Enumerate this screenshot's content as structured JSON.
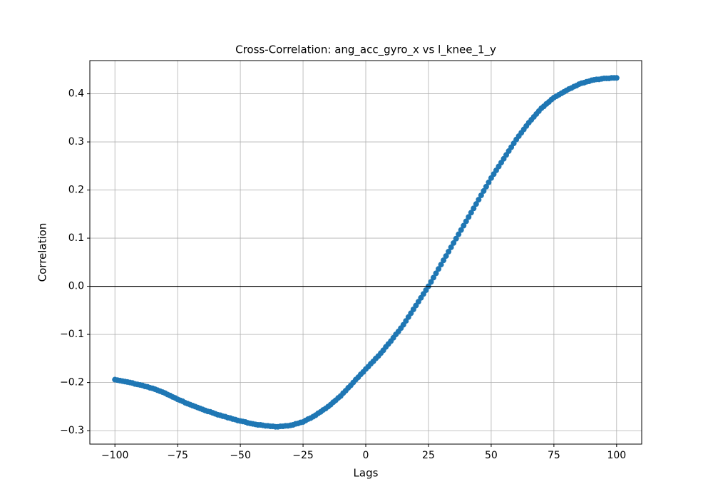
{
  "chart_data": {
    "type": "line",
    "title": "Cross-Correlation: ang_acc_gyro_x vs l_knee_1_y",
    "x_label": "Lags",
    "y_label": "Correlation",
    "x": [
      -100,
      -99,
      -98,
      -97,
      -96,
      -95,
      -94,
      -93,
      -92,
      -91,
      -90,
      -89,
      -88,
      -87,
      -86,
      -85,
      -84,
      -83,
      -82,
      -81,
      -80,
      -79,
      -78,
      -77,
      -76,
      -75,
      -74,
      -73,
      -72,
      -71,
      -70,
      -69,
      -68,
      -67,
      -66,
      -65,
      -64,
      -63,
      -62,
      -61,
      -60,
      -59,
      -58,
      -57,
      -56,
      -55,
      -54,
      -53,
      -52,
      -51,
      -50,
      -49,
      -48,
      -47,
      -46,
      -45,
      -44,
      -43,
      -42,
      -41,
      -40,
      -39,
      -38,
      -37,
      -36,
      -35,
      -34,
      -33,
      -32,
      -31,
      -30,
      -29,
      -28,
      -27,
      -26,
      -25,
      -24,
      -23,
      -22,
      -21,
      -20,
      -19,
      -18,
      -17,
      -16,
      -15,
      -14,
      -13,
      -12,
      -11,
      -10,
      -9,
      -8,
      -7,
      -6,
      -5,
      -4,
      -3,
      -2,
      -1,
      0,
      1,
      2,
      3,
      4,
      5,
      6,
      7,
      8,
      9,
      10,
      11,
      12,
      13,
      14,
      15,
      16,
      17,
      18,
      19,
      20,
      21,
      22,
      23,
      24,
      25,
      26,
      27,
      28,
      29,
      30,
      31,
      32,
      33,
      34,
      35,
      36,
      37,
      38,
      39,
      40,
      41,
      42,
      43,
      44,
      45,
      46,
      47,
      48,
      49,
      50,
      51,
      52,
      53,
      54,
      55,
      56,
      57,
      58,
      59,
      60,
      61,
      62,
      63,
      64,
      65,
      66,
      67,
      68,
      69,
      70,
      71,
      72,
      73,
      74,
      75,
      76,
      77,
      78,
      79,
      80,
      81,
      82,
      83,
      84,
      85,
      86,
      87,
      88,
      89,
      90,
      91,
      92,
      93,
      94,
      95,
      96,
      97,
      98,
      99,
      100
    ],
    "series": [
      {
        "color": "#1f77b4",
        "values": [
          -0.194,
          -0.195,
          -0.196,
          -0.197,
          -0.198,
          -0.199,
          -0.2,
          -0.201,
          -0.203,
          -0.204,
          -0.205,
          -0.206,
          -0.208,
          -0.209,
          -0.211,
          -0.212,
          -0.214,
          -0.216,
          -0.218,
          -0.22,
          -0.222,
          -0.225,
          -0.227,
          -0.23,
          -0.232,
          -0.235,
          -0.237,
          -0.239,
          -0.242,
          -0.244,
          -0.246,
          -0.248,
          -0.25,
          -0.252,
          -0.254,
          -0.256,
          -0.258,
          -0.26,
          -0.261,
          -0.263,
          -0.265,
          -0.267,
          -0.268,
          -0.27,
          -0.271,
          -0.273,
          -0.274,
          -0.276,
          -0.277,
          -0.279,
          -0.28,
          -0.281,
          -0.282,
          -0.284,
          -0.285,
          -0.286,
          -0.287,
          -0.288,
          -0.288,
          -0.289,
          -0.29,
          -0.29,
          -0.291,
          -0.291,
          -0.292,
          -0.292,
          -0.291,
          -0.291,
          -0.29,
          -0.29,
          -0.289,
          -0.288,
          -0.286,
          -0.285,
          -0.283,
          -0.282,
          -0.279,
          -0.276,
          -0.274,
          -0.271,
          -0.268,
          -0.264,
          -0.261,
          -0.257,
          -0.254,
          -0.25,
          -0.246,
          -0.241,
          -0.237,
          -0.232,
          -0.228,
          -0.222,
          -0.217,
          -0.211,
          -0.206,
          -0.2,
          -0.194,
          -0.189,
          -0.183,
          -0.178,
          -0.172,
          -0.167,
          -0.161,
          -0.156,
          -0.15,
          -0.145,
          -0.139,
          -0.133,
          -0.126,
          -0.12,
          -0.114,
          -0.107,
          -0.1,
          -0.094,
          -0.087,
          -0.08,
          -0.072,
          -0.064,
          -0.056,
          -0.048,
          -0.04,
          -0.032,
          -0.024,
          -0.016,
          -0.008,
          0.0,
          0.009,
          0.018,
          0.027,
          0.036,
          0.045,
          0.054,
          0.063,
          0.072,
          0.081,
          0.09,
          0.099,
          0.108,
          0.117,
          0.126,
          0.135,
          0.144,
          0.153,
          0.162,
          0.171,
          0.18,
          0.189,
          0.198,
          0.207,
          0.216,
          0.225,
          0.233,
          0.241,
          0.249,
          0.257,
          0.265,
          0.273,
          0.281,
          0.289,
          0.297,
          0.305,
          0.312,
          0.319,
          0.326,
          0.333,
          0.34,
          0.346,
          0.352,
          0.358,
          0.364,
          0.37,
          0.374,
          0.379,
          0.383,
          0.388,
          0.392,
          0.395,
          0.398,
          0.401,
          0.404,
          0.407,
          0.41,
          0.412,
          0.415,
          0.417,
          0.42,
          0.422,
          0.423,
          0.425,
          0.426,
          0.428,
          0.429,
          0.43,
          0.43,
          0.431,
          0.432,
          0.432,
          0.432,
          0.433,
          0.433,
          0.433
        ]
      }
    ],
    "xlim": [
      -110,
      110
    ],
    "xticks": [
      {
        "value": -100,
        "label": "−100"
      },
      {
        "value": -75,
        "label": "−75"
      },
      {
        "value": -50,
        "label": "−50"
      },
      {
        "value": -25,
        "label": "−25"
      },
      0,
      25,
      50,
      75,
      100
    ],
    "ylim": [
      -0.328,
      0.469
    ],
    "yticks": [
      {
        "value": -0.3,
        "label": "−0.3"
      },
      {
        "value": -0.2,
        "label": "−0.2"
      },
      {
        "value": -0.1,
        "label": "−0.1"
      },
      {
        "value": 0,
        "label": "0.0"
      },
      0.1,
      0.2,
      0.3,
      0.4
    ],
    "reference_line": 0,
    "grid": true,
    "markers": true
  }
}
